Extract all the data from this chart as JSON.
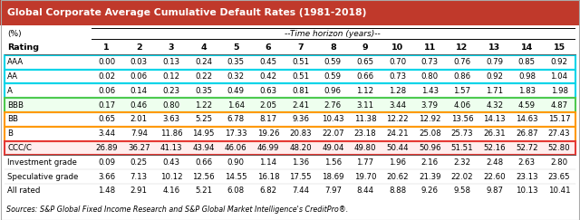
{
  "title": "Global Corporate Average Cumulative Default Rates (1981-2018)",
  "subtitle_left": "(%)",
  "subtitle_right": "--Time horizon (years)--",
  "source": "Sources: S&P Global Fixed Income Research and S&P Global Market Intelligence's CreditPro®.",
  "col_header": [
    "Rating",
    "1",
    "2",
    "3",
    "4",
    "5",
    "6",
    "7",
    "8",
    "9",
    "10",
    "11",
    "12",
    "13",
    "14",
    "15"
  ],
  "rows": [
    [
      "AAA",
      "0.00",
      "0.03",
      "0.13",
      "0.24",
      "0.35",
      "0.45",
      "0.51",
      "0.59",
      "0.65",
      "0.70",
      "0.73",
      "0.76",
      "0.79",
      "0.85",
      "0.92"
    ],
    [
      "AA",
      "0.02",
      "0.06",
      "0.12",
      "0.22",
      "0.32",
      "0.42",
      "0.51",
      "0.59",
      "0.66",
      "0.73",
      "0.80",
      "0.86",
      "0.92",
      "0.98",
      "1.04"
    ],
    [
      "A",
      "0.06",
      "0.14",
      "0.23",
      "0.35",
      "0.49",
      "0.63",
      "0.81",
      "0.96",
      "1.12",
      "1.28",
      "1.43",
      "1.57",
      "1.71",
      "1.83",
      "1.98"
    ],
    [
      "BBB",
      "0.17",
      "0.46",
      "0.80",
      "1.22",
      "1.64",
      "2.05",
      "2.41",
      "2.76",
      "3.11",
      "3.44",
      "3.79",
      "4.06",
      "4.32",
      "4.59",
      "4.87"
    ],
    [
      "BB",
      "0.65",
      "2.01",
      "3.63",
      "5.25",
      "6.78",
      "8.17",
      "9.36",
      "10.43",
      "11.38",
      "12.22",
      "12.92",
      "13.56",
      "14.13",
      "14.63",
      "15.17"
    ],
    [
      "B",
      "3.44",
      "7.94",
      "11.86",
      "14.95",
      "17.33",
      "19.26",
      "20.83",
      "22.07",
      "23.18",
      "24.21",
      "25.08",
      "25.73",
      "26.31",
      "26.87",
      "27.43"
    ],
    [
      "CCC/C",
      "26.89",
      "36.27",
      "41.13",
      "43.94",
      "46.06",
      "46.99",
      "48.20",
      "49.04",
      "49.80",
      "50.44",
      "50.96",
      "51.51",
      "52.16",
      "52.72",
      "52.80"
    ],
    [
      "Investment grade",
      "0.09",
      "0.25",
      "0.43",
      "0.66",
      "0.90",
      "1.14",
      "1.36",
      "1.56",
      "1.77",
      "1.96",
      "2.16",
      "2.32",
      "2.48",
      "2.63",
      "2.80"
    ],
    [
      "Speculative grade",
      "3.66",
      "7.13",
      "10.12",
      "12.56",
      "14.55",
      "16.18",
      "17.55",
      "18.69",
      "19.70",
      "20.62",
      "21.39",
      "22.02",
      "22.60",
      "23.13",
      "23.65"
    ],
    [
      "All rated",
      "1.48",
      "2.91",
      "4.16",
      "5.21",
      "6.08",
      "6.82",
      "7.44",
      "7.97",
      "8.44",
      "8.88",
      "9.26",
      "9.58",
      "9.87",
      "10.13",
      "10.41"
    ]
  ],
  "title_bg": "#c0392b",
  "title_fg": "#ffffff",
  "border_cyan": "#00d4e8",
  "border_green": "#4ec94e",
  "border_orange": "#ff9900",
  "border_red": "#e53935",
  "outline_rows": [
    0,
    1,
    2,
    3,
    4,
    5,
    6
  ],
  "outline_colors": [
    "#00d4e8",
    "#00d4e8",
    "#00d4e8",
    "#4ec94e",
    "#ff9900",
    "#ff9900",
    "#e53935"
  ],
  "row_bgs": [
    "#ffffff",
    "#ffffff",
    "#ffffff",
    "#eeffee",
    "#ffffff",
    "#ffffff",
    "#ffeeee",
    "#ffffff",
    "#ffffff",
    "#ffffff"
  ]
}
